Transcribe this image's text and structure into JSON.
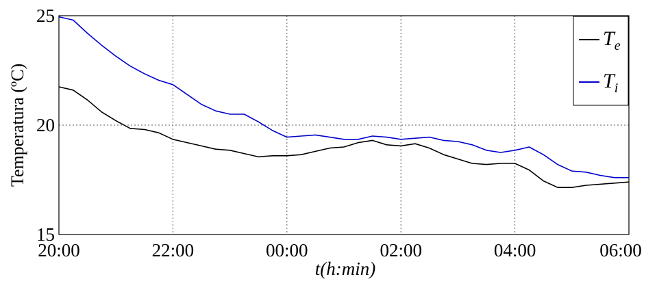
{
  "chart_data": {
    "type": "line",
    "xlabel": "t(h:min)",
    "ylabel": "Temperatura (ºC)",
    "x_tick_labels": [
      "20:00",
      "22:00",
      "00:00",
      "02:00",
      "04:00",
      "06:00"
    ],
    "y_ticks": [
      15,
      20,
      25
    ],
    "y_tick_labels": [
      "15",
      "20",
      "25"
    ],
    "x_range_hours": [
      0,
      10
    ],
    "ylim": [
      15,
      25
    ],
    "grid": true,
    "legend_position": "top-right",
    "x_hours": [
      0,
      0.25,
      0.5,
      0.75,
      1,
      1.25,
      1.5,
      1.75,
      2,
      2.25,
      2.5,
      2.75,
      3,
      3.25,
      3.5,
      3.75,
      4,
      4.25,
      4.5,
      4.75,
      5,
      5.25,
      5.5,
      5.75,
      6,
      6.25,
      6.5,
      6.75,
      7,
      7.25,
      7.5,
      7.75,
      8,
      8.25,
      8.5,
      8.75,
      9,
      9.25,
      9.5,
      9.75,
      10
    ],
    "series": [
      {
        "legend_main": "T",
        "legend_sub": "e",
        "color": "#000000",
        "values": [
          21.75,
          21.6,
          21.15,
          20.6,
          20.2,
          19.85,
          19.8,
          19.65,
          19.35,
          19.2,
          19.05,
          18.9,
          18.85,
          18.7,
          18.55,
          18.6,
          18.6,
          18.65,
          18.8,
          18.95,
          19.0,
          19.2,
          19.3,
          19.1,
          19.05,
          19.15,
          18.95,
          18.65,
          18.45,
          18.25,
          18.2,
          18.25,
          18.25,
          17.95,
          17.45,
          17.15,
          17.15,
          17.25,
          17.3,
          17.35,
          17.4
        ]
      },
      {
        "legend_main": "T",
        "legend_sub": "i",
        "color": "#0000cc",
        "values": [
          24.95,
          24.8,
          24.2,
          23.65,
          23.15,
          22.7,
          22.35,
          22.05,
          21.85,
          21.4,
          20.95,
          20.65,
          20.5,
          20.5,
          20.15,
          19.75,
          19.45,
          19.5,
          19.55,
          19.45,
          19.35,
          19.35,
          19.5,
          19.45,
          19.35,
          19.4,
          19.45,
          19.3,
          19.25,
          19.1,
          18.85,
          18.75,
          18.85,
          19.0,
          18.65,
          18.2,
          17.9,
          17.85,
          17.7,
          17.6,
          17.6
        ]
      }
    ]
  }
}
